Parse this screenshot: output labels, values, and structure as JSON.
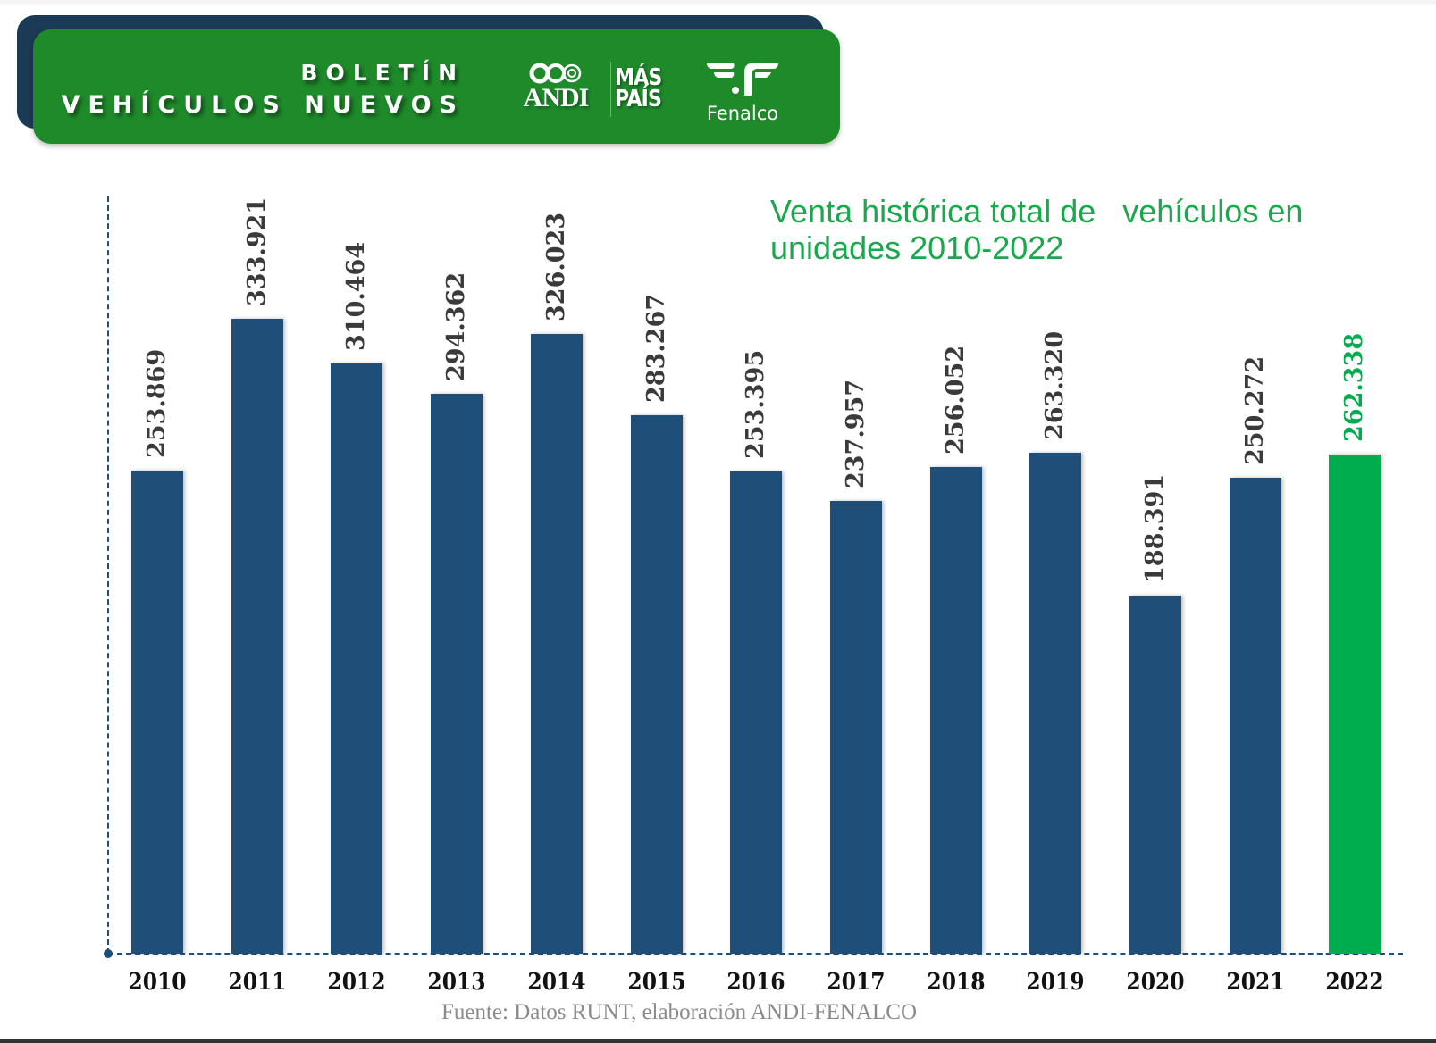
{
  "header": {
    "title_line1": "BOLETÍN",
    "title_line2": "VEHÍCULOS NUEVOS",
    "logos": {
      "andi": "ANDI",
      "mas_line1": "MÁS",
      "mas_line2": "PAÍS",
      "fenalco": "Fenalco"
    },
    "colors": {
      "front": "#1e8a2a",
      "back": "#1b3a55"
    }
  },
  "chart_title": "Venta histórica total de   vehículos en\nunidades 2010-2022",
  "source": "Fuente: Datos RUNT, elaboración ANDI-FENALCO",
  "colors": {
    "bar": "#1f4e79",
    "highlight": "#00ad4e",
    "title": "#19a84c"
  },
  "chart_data": {
    "type": "bar",
    "title": "Venta histórica total de vehículos en unidades 2010-2022",
    "xlabel": "",
    "ylabel": "",
    "categories": [
      "2010",
      "2011",
      "2012",
      "2013",
      "2014",
      "2015",
      "2016",
      "2017",
      "2018",
      "2019",
      "2020",
      "2021",
      "2022"
    ],
    "values": [
      253869,
      333921,
      310464,
      294362,
      326023,
      283267,
      253395,
      237957,
      256052,
      263320,
      188391,
      250272,
      262338
    ],
    "value_labels": [
      "253.869",
      "333.921",
      "310.464",
      "294.362",
      "326.023",
      "283.267",
      "253.395",
      "237.957",
      "256.052",
      "263.320",
      "188.391",
      "250.272",
      "262.338"
    ],
    "highlight_index": 12,
    "grid": false,
    "legend": null,
    "ylim": [
      0,
      340000
    ],
    "source": "Fuente: Datos RUNT, elaboración ANDI-FENALCO"
  }
}
